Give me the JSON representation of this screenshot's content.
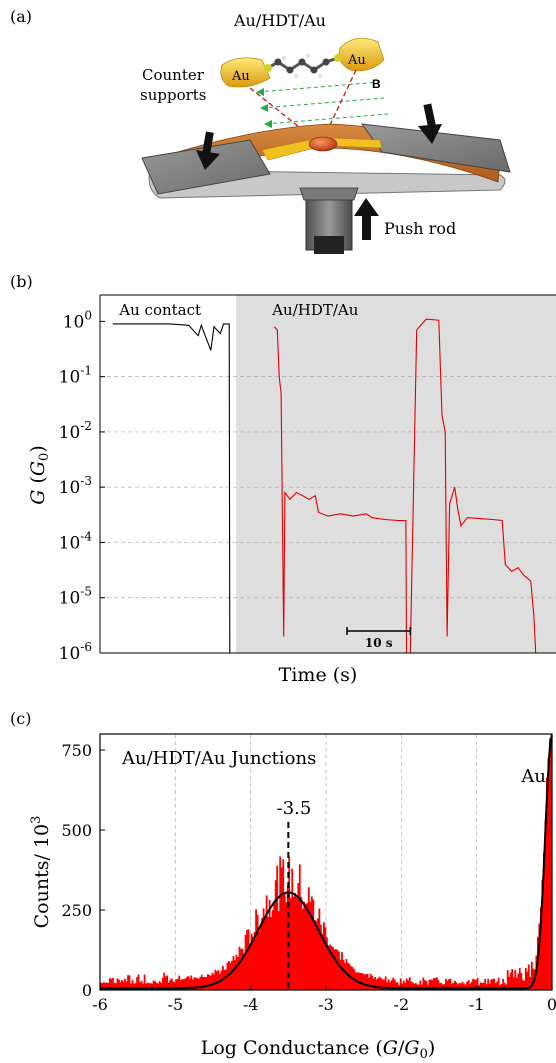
{
  "panel_a": {
    "label": "(a)",
    "molecule_label": "Au/HDT/Au",
    "left_electrode": "Au",
    "right_electrode": "Au",
    "field_label": "B",
    "counter_supports_line1": "Counter",
    "counter_supports_line2": "supports",
    "push_rod": "Push rod",
    "colors": {
      "gold": "#e8b820",
      "substrate": "#c8702a",
      "support": "#8a8a8a",
      "beam": "#d01010",
      "beam2": "#22aa44"
    }
  },
  "chart_data": [
    {
      "type": "line",
      "panel_label": "(b)",
      "ylabel_main": "G",
      "ylabel_unit": "G",
      "ylabel_sub": "0",
      "xlabel": "Time (s)",
      "yscale": "log",
      "ylim": [
        1e-06,
        3
      ],
      "y_ticks": [
        {
          "value": 1,
          "exp": "0"
        },
        {
          "value": 0.1,
          "exp": "-1"
        },
        {
          "value": 0.01,
          "exp": "-2"
        },
        {
          "value": 0.001,
          "exp": "-3"
        },
        {
          "value": 0.0001,
          "exp": "-4"
        },
        {
          "value": 1e-05,
          "exp": "-5"
        },
        {
          "value": 1e-06,
          "exp": "-6"
        }
      ],
      "tick_base": "10",
      "region_left_label": "Au contact",
      "region_right_label": "Au/HDT/Au",
      "scale_bar_label": "10 s",
      "grid": true,
      "series": [
        {
          "color": "#000000",
          "points": [
            [
              0,
              0.9
            ],
            [
              9,
              0.9
            ],
            [
              12,
              0.85
            ],
            [
              13.5,
              0.55
            ],
            [
              14,
              0.85
            ],
            [
              15.5,
              0.3
            ],
            [
              16,
              0.8
            ],
            [
              17,
              0.6
            ],
            [
              17.5,
              0.9
            ],
            [
              18.4,
              0.9
            ],
            [
              18.5,
              1e-06
            ]
          ]
        },
        {
          "color": "#e00000",
          "points": [
            [
              25.5,
              0.8
            ],
            [
              26,
              0.7
            ],
            [
              26.3,
              0.1
            ],
            [
              26.6,
              0.05
            ],
            [
              27,
              2e-06
            ],
            [
              27.2,
              0.0008
            ],
            [
              28,
              0.0006
            ],
            [
              29,
              0.0008
            ],
            [
              30,
              0.0007
            ],
            [
              31,
              0.0006
            ],
            [
              32,
              0.0007
            ],
            [
              32.5,
              0.00035
            ],
            [
              34,
              0.0003
            ],
            [
              36,
              0.00033
            ],
            [
              38,
              0.0003
            ],
            [
              40,
              0.00033
            ],
            [
              41,
              0.00028
            ],
            [
              43,
              0.00026
            ],
            [
              45,
              0.00025
            ],
            [
              46.3,
              0.00025
            ],
            [
              46.4,
              1e-06
            ],
            [
              47,
              1e-06
            ],
            [
              48,
              0.7
            ],
            [
              49.5,
              1.1
            ],
            [
              51.5,
              1.05
            ],
            [
              52,
              0.02
            ],
            [
              52.5,
              0.01
            ],
            [
              52.8,
              2e-06
            ],
            [
              53.2,
              0.0005
            ],
            [
              54,
              0.001
            ],
            [
              54.5,
              0.0004
            ],
            [
              55,
              0.0002
            ],
            [
              56,
              0.00028
            ],
            [
              58,
              0.00027
            ],
            [
              60,
              0.00026
            ],
            [
              61.5,
              0.00025
            ],
            [
              62,
              4e-05
            ],
            [
              63,
              3e-05
            ],
            [
              64,
              3.5e-05
            ],
            [
              65,
              2.5e-05
            ],
            [
              66,
              2e-05
            ],
            [
              66.5,
              5e-06
            ],
            [
              66.8,
              1e-06
            ]
          ]
        }
      ],
      "xlim": [
        -2,
        70
      ],
      "shaded_from": 19.5
    },
    {
      "type": "bar",
      "panel_label": "(c)",
      "title": "Au/HDT/Au Junctions",
      "xlabel_text": "Log Conductance (",
      "xlabel_G": "G",
      "xlabel_slash": "/",
      "xlabel_G0": "G",
      "xlabel_sub": "0",
      "xlabel_close": ")",
      "ylabel": "Counts/ 10",
      "ylabel_sup": "3",
      "xlim": [
        -6,
        0
      ],
      "ylim": [
        0,
        800
      ],
      "x_ticks": [
        "-6",
        "-5",
        "-4",
        "-3",
        "-2",
        "-1",
        "0"
      ],
      "y_ticks": [
        "0",
        "250",
        "500",
        "750"
      ],
      "peak_label": "-3.5",
      "peak_x": -3.5,
      "au_label": "Au",
      "grid": "vertical dashed",
      "bar_color": "#ff0000",
      "fit": {
        "type": "gaussian",
        "center": -3.5,
        "amplitude": 300,
        "sigma": 0.4,
        "baseline": 5,
        "au_tail_center": 0,
        "au_tail_sigma": 0.09,
        "au_tail_amplitude": 790
      }
    }
  ]
}
